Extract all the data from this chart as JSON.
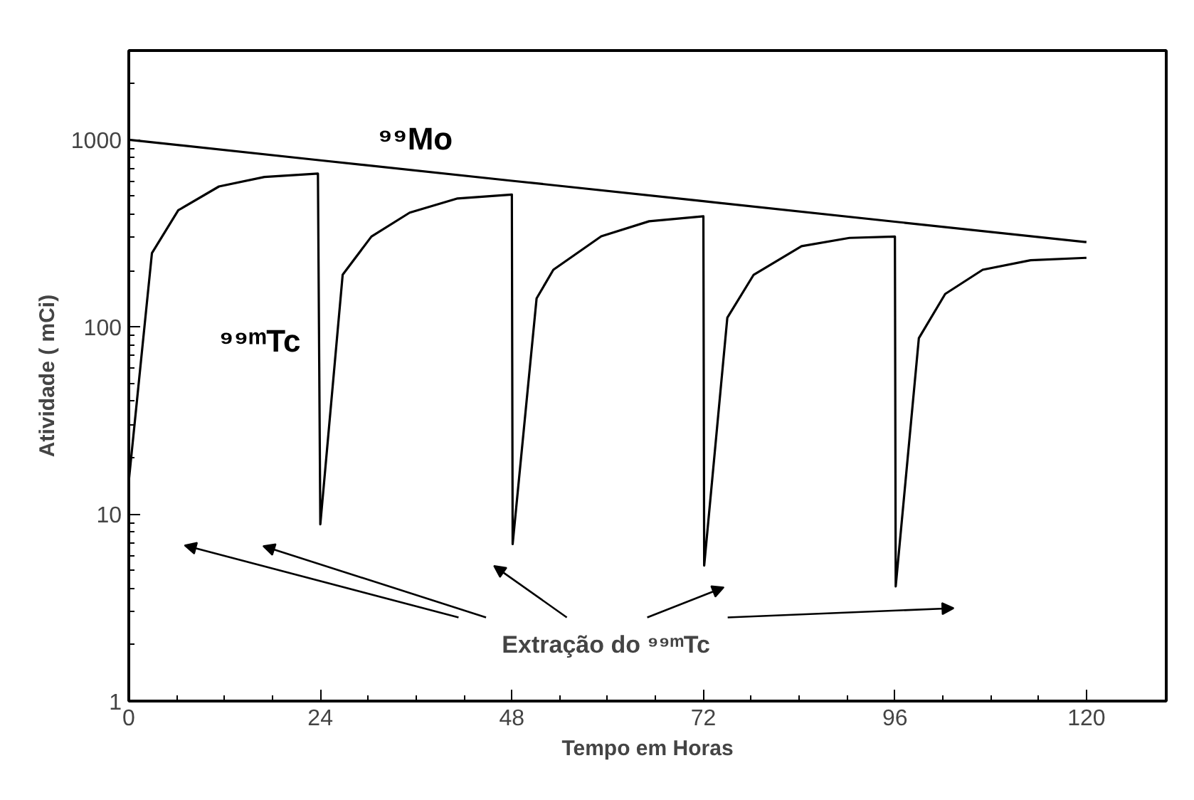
{
  "chart_data": {
    "type": "line",
    "xlabel": "Tempo em Horas",
    "ylabel": "Atividade ( mCi)",
    "log": "y",
    "xlim": [
      0,
      130
    ],
    "ylim": [
      1,
      3000
    ],
    "xticks": [
      0,
      24,
      48,
      72,
      96,
      120
    ],
    "yticks": [
      1,
      10,
      100,
      1000
    ],
    "grid": false,
    "legend": false,
    "marker": "none",
    "line_style": "solid",
    "series": [
      {
        "name": "⁹⁹Mo",
        "color": "#000000",
        "x": [
          0,
          24,
          48,
          72,
          96,
          120
        ],
        "values": [
          1000,
          777,
          604,
          470,
          365,
          284
        ]
      },
      {
        "name": "⁹⁹ᵐTc",
        "color": "#000000",
        "x": [
          0,
          2.9,
          6.2,
          11.3,
          17,
          23.7,
          24,
          26.8,
          30.4,
          35.2,
          41.2,
          48,
          48.1,
          51.1,
          53.2,
          59.2,
          65.2,
          72,
          72.1,
          75,
          78.3,
          84.3,
          90.3,
          96,
          96.1,
          99,
          102.3,
          107,
          113,
          120
        ],
        "values": [
          15,
          248,
          420,
          563,
          633,
          660,
          8.8,
          190,
          304,
          408,
          486,
          510,
          6.9,
          142,
          202,
          305,
          367,
          390,
          5.3,
          112,
          190,
          270,
          299,
          304,
          4.1,
          87,
          150,
          202,
          227,
          234
        ]
      }
    ],
    "annotations": [
      "Extração do ⁹⁹ᵐTc"
    ]
  }
}
